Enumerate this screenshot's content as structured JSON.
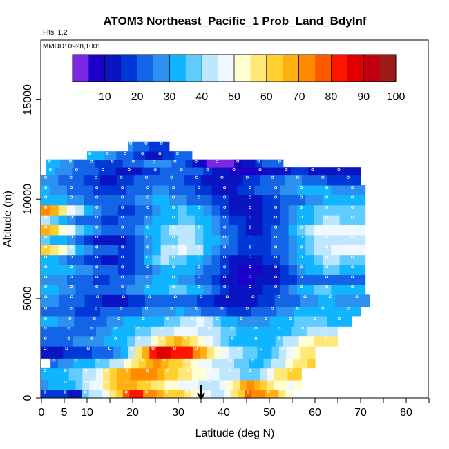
{
  "chart_data": {
    "type": "heatmap",
    "title": "ATOM3 Northeast_Pacific_1 Prob_Land_BdyInf",
    "annotations": {
      "flights": "Flts: 1,2",
      "dates": "MMDD: 0928,1001"
    },
    "xlabel": "Latitude (deg N)",
    "ylabel": "Altitude (m)",
    "xlim": [
      0,
      85
    ],
    "ylim": [
      0,
      18000
    ],
    "x_tick_labels": [
      "0",
      "5",
      "10",
      "20",
      "30",
      "40",
      "50",
      "60",
      "70",
      "80"
    ],
    "y_tick_labels": [
      "0",
      "5000",
      "10000",
      "15000"
    ],
    "colorbar": {
      "min": 0,
      "max": 100,
      "tick_labels": [
        "10",
        "20",
        "30",
        "40",
        "50",
        "60",
        "70",
        "80",
        "90",
        "100"
      ],
      "colors": [
        "#7b28e6",
        "#1b00c8",
        "#0a14c0",
        "#0038d8",
        "#1464e8",
        "#2b90f0",
        "#10b4ff",
        "#60ccff",
        "#bee6ff",
        "#f0f8ff",
        "#ffffd0",
        "#ffe878",
        "#ffd030",
        "#ffb010",
        "#ff8c00",
        "#ff5a00",
        "#ff1400",
        "#e00000",
        "#c00010",
        "#9c1a1a"
      ]
    },
    "marker_latitude": 35,
    "grid": false,
    "rows": [
      {
        "alt_min": 0,
        "alt_max": 400,
        "lat_min": 0,
        "lat_max": 55,
        "values": [
          18,
          18,
          18,
          18,
          12,
          12,
          38,
          40,
          42,
          45,
          55,
          62,
          78,
          80,
          82,
          72,
          70,
          66,
          64,
          64,
          60,
          55,
          50,
          48,
          46,
          44,
          42,
          45,
          55,
          60,
          75,
          72,
          70,
          68,
          65,
          58,
          52
        ]
      },
      {
        "alt_min": 400,
        "alt_max": 900,
        "lat_min": 0,
        "lat_max": 57,
        "values": [
          28,
          30,
          32,
          34,
          34,
          38,
          42,
          45,
          48,
          55,
          62,
          68,
          66,
          65,
          62,
          60,
          58,
          55,
          52,
          50,
          48,
          48,
          46,
          44,
          42,
          40,
          45,
          50,
          58,
          66,
          70,
          65,
          60,
          55,
          52,
          50,
          48,
          52
        ]
      },
      {
        "alt_min": 900,
        "alt_max": 1500,
        "lat_min": 0,
        "lat_max": 57,
        "values": [
          30,
          30,
          32,
          34,
          36,
          38,
          40,
          44,
          48,
          55,
          62,
          66,
          68,
          72,
          74,
          72,
          70,
          68,
          64,
          62,
          58,
          55,
          52,
          50,
          48,
          46,
          44,
          42,
          40,
          38,
          36,
          38,
          42,
          48,
          55,
          58,
          60,
          62
        ]
      },
      {
        "alt_min": 1500,
        "alt_max": 2000,
        "lat_min": 2,
        "lat_max": 60,
        "values": [
          24,
          26,
          28,
          30,
          32,
          34,
          36,
          38,
          40,
          44,
          50,
          56,
          62,
          68,
          70,
          68,
          64,
          60,
          56,
          52,
          48,
          46,
          44,
          42,
          40,
          38,
          36,
          34,
          34,
          36,
          40,
          44,
          50,
          55,
          58,
          60
        ]
      },
      {
        "alt_min": 2000,
        "alt_max": 2600,
        "lat_min": 0,
        "lat_max": 60,
        "values": [
          14,
          14,
          14,
          16,
          16,
          18,
          18,
          20,
          22,
          24,
          28,
          34,
          44,
          56,
          68,
          84,
          88,
          86,
          84,
          82,
          80,
          74,
          66,
          58,
          50,
          46,
          42,
          40,
          38,
          36,
          34,
          34,
          36,
          40,
          46,
          52,
          56,
          58
        ]
      },
      {
        "alt_min": 2600,
        "alt_max": 3100,
        "lat_min": 0,
        "lat_max": 65,
        "values": [
          22,
          22,
          24,
          24,
          26,
          26,
          28,
          28,
          30,
          30,
          34,
          36,
          40,
          44,
          52,
          58,
          64,
          66,
          64,
          58,
          52,
          46,
          42,
          38,
          34,
          32,
          30,
          30,
          32,
          34,
          36,
          40,
          44,
          50,
          54,
          56,
          58,
          58
        ]
      },
      {
        "alt_min": 3100,
        "alt_max": 3600,
        "lat_min": 0,
        "lat_max": 65,
        "values": [
          20,
          20,
          22,
          22,
          24,
          24,
          24,
          26,
          28,
          30,
          32,
          34,
          36,
          38,
          40,
          42,
          44,
          46,
          48,
          46,
          44,
          42,
          40,
          38,
          36,
          34,
          32,
          30,
          30,
          30,
          32,
          34,
          36,
          38,
          40,
          42,
          44,
          44
        ]
      },
      {
        "alt_min": 3600,
        "alt_max": 4100,
        "lat_min": 0,
        "lat_max": 68,
        "values": [
          30,
          30,
          28,
          26,
          24,
          22,
          22,
          24,
          26,
          28,
          30,
          32,
          34,
          34,
          34,
          36,
          38,
          40,
          44,
          46,
          42,
          38,
          34,
          30,
          28,
          26,
          26,
          28,
          30,
          32,
          34,
          36,
          38,
          38,
          36,
          34,
          34,
          34
        ]
      },
      {
        "alt_min": 4100,
        "alt_max": 4600,
        "lat_min": 0,
        "lat_max": 70,
        "values": [
          24,
          24,
          22,
          20,
          18,
          18,
          18,
          20,
          22,
          22,
          24,
          24,
          26,
          26,
          28,
          28,
          30,
          28,
          26,
          24,
          22,
          20,
          18,
          18,
          18,
          20,
          22,
          24,
          26,
          28,
          30,
          32,
          34,
          34,
          32,
          30,
          30,
          30
        ]
      },
      {
        "alt_min": 4600,
        "alt_max": 5200,
        "lat_min": 0,
        "lat_max": 72,
        "values": [
          26,
          26,
          24,
          22,
          20,
          18,
          16,
          14,
          14,
          14,
          16,
          18,
          20,
          22,
          24,
          24,
          22,
          20,
          18,
          16,
          14,
          12,
          12,
          12,
          14,
          16,
          18,
          20,
          22,
          24,
          26,
          28,
          30,
          30,
          28,
          26,
          26,
          26
        ]
      },
      {
        "alt_min": 5200,
        "alt_max": 5700,
        "lat_min": 0,
        "lat_max": 71,
        "values": [
          30,
          30,
          28,
          26,
          24,
          22,
          20,
          20,
          22,
          24,
          26,
          28,
          30,
          32,
          34,
          36,
          36,
          34,
          30,
          26,
          22,
          18,
          14,
          12,
          12,
          14,
          16,
          18,
          22,
          26,
          30,
          34,
          36,
          36,
          34,
          32,
          32,
          32
        ]
      },
      {
        "alt_min": 5700,
        "alt_max": 6200,
        "lat_min": 0,
        "lat_max": 71,
        "values": [
          28,
          28,
          26,
          24,
          22,
          20,
          18,
          18,
          20,
          22,
          24,
          26,
          28,
          30,
          32,
          30,
          28,
          26,
          24,
          22,
          18,
          14,
          10,
          8,
          8,
          10,
          12,
          14,
          16,
          18,
          20,
          22,
          24,
          24,
          22,
          20,
          20,
          20
        ]
      },
      {
        "alt_min": 6200,
        "alt_max": 6700,
        "lat_min": 0,
        "lat_max": 71,
        "values": [
          34,
          34,
          32,
          30,
          28,
          26,
          24,
          22,
          20,
          18,
          18,
          20,
          22,
          26,
          30,
          32,
          34,
          32,
          28,
          24,
          20,
          16,
          12,
          8,
          6,
          8,
          10,
          14,
          18,
          22,
          26,
          30,
          34,
          36,
          36,
          34,
          34,
          34
        ]
      },
      {
        "alt_min": 6700,
        "alt_max": 7200,
        "lat_min": 0,
        "lat_max": 71,
        "values": [
          32,
          30,
          28,
          24,
          20,
          18,
          16,
          14,
          14,
          16,
          18,
          24,
          32,
          38,
          40,
          38,
          36,
          34,
          30,
          26,
          22,
          18,
          14,
          12,
          12,
          14,
          16,
          18,
          22,
          26,
          30,
          34,
          38,
          40,
          40,
          38,
          38,
          38
        ]
      },
      {
        "alt_min": 7200,
        "alt_max": 7700,
        "lat_min": 0,
        "lat_max": 71,
        "values": [
          62,
          58,
          50,
          42,
          34,
          28,
          24,
          22,
          20,
          18,
          18,
          22,
          28,
          34,
          40,
          44,
          46,
          44,
          40,
          34,
          28,
          24,
          20,
          18,
          16,
          16,
          18,
          20,
          24,
          28,
          32,
          36,
          40,
          44,
          46,
          46,
          46,
          46
        ]
      },
      {
        "alt_min": 7700,
        "alt_max": 8200,
        "lat_min": 0,
        "lat_max": 71,
        "values": [
          36,
          34,
          30,
          26,
          22,
          18,
          14,
          12,
          12,
          14,
          18,
          22,
          28,
          32,
          36,
          38,
          40,
          40,
          38,
          34,
          30,
          26,
          22,
          18,
          16,
          16,
          18,
          20,
          24,
          28,
          32,
          36,
          40,
          42,
          44,
          44,
          44,
          44
        ]
      },
      {
        "alt_min": 8200,
        "alt_max": 8700,
        "lat_min": 0,
        "lat_max": 71,
        "values": [
          68,
          62,
          54,
          46,
          38,
          32,
          26,
          22,
          20,
          20,
          22,
          26,
          30,
          34,
          38,
          40,
          42,
          40,
          36,
          32,
          28,
          24,
          20,
          16,
          14,
          14,
          16,
          20,
          24,
          30,
          36,
          42,
          46,
          48,
          48,
          46,
          46,
          46
        ]
      },
      {
        "alt_min": 8700,
        "alt_max": 9200,
        "lat_min": 0,
        "lat_max": 71,
        "values": [
          40,
          36,
          32,
          28,
          24,
          22,
          20,
          18,
          18,
          20,
          22,
          24,
          28,
          30,
          32,
          34,
          36,
          36,
          34,
          30,
          26,
          22,
          18,
          16,
          14,
          14,
          16,
          18,
          22,
          26,
          30,
          34,
          38,
          40,
          40,
          38,
          38,
          38
        ]
      },
      {
        "alt_min": 9200,
        "alt_max": 9700,
        "lat_min": 0,
        "lat_max": 71,
        "values": [
          72,
          66,
          58,
          48,
          40,
          32,
          26,
          22,
          20,
          18,
          18,
          20,
          24,
          28,
          32,
          34,
          36,
          34,
          30,
          26,
          22,
          18,
          14,
          12,
          12,
          14,
          16,
          18,
          22,
          26,
          30,
          34,
          36,
          38,
          38,
          36,
          36,
          36
        ]
      },
      {
        "alt_min": 9700,
        "alt_max": 10200,
        "lat_min": 0,
        "lat_max": 71,
        "values": [
          34,
          32,
          30,
          28,
          26,
          24,
          22,
          20,
          20,
          22,
          24,
          26,
          28,
          30,
          30,
          28,
          26,
          24,
          22,
          20,
          18,
          16,
          14,
          12,
          12,
          14,
          16,
          18,
          20,
          22,
          24,
          26,
          28,
          30,
          30,
          30,
          30,
          30
        ]
      },
      {
        "alt_min": 10200,
        "alt_max": 10700,
        "lat_min": 0,
        "lat_max": 71,
        "values": [
          30,
          28,
          26,
          24,
          22,
          20,
          18,
          16,
          16,
          18,
          20,
          22,
          24,
          26,
          26,
          24,
          22,
          20,
          18,
          16,
          14,
          14,
          14,
          16,
          18,
          20,
          22,
          24,
          26,
          28,
          30,
          30,
          30,
          30,
          28,
          28,
          28,
          28
        ]
      },
      {
        "alt_min": 10700,
        "alt_max": 11200,
        "lat_min": 0,
        "lat_max": 70,
        "values": [
          28,
          26,
          24,
          22,
          20,
          18,
          16,
          14,
          14,
          16,
          18,
          20,
          22,
          24,
          24,
          22,
          20,
          18,
          16,
          14,
          12,
          12,
          12,
          14,
          16,
          18,
          20,
          22,
          24,
          26,
          26,
          24,
          22,
          20,
          18,
          18,
          18,
          18
        ]
      },
      {
        "alt_min": 11200,
        "alt_max": 11600,
        "lat_min": 1,
        "lat_max": 70,
        "values": [
          30,
          28,
          26,
          24,
          22,
          20,
          18,
          16,
          14,
          14,
          14,
          16,
          18,
          20,
          22,
          24,
          22,
          20,
          16,
          12,
          10,
          8,
          6,
          6,
          8,
          10,
          12,
          14,
          16,
          16,
          14,
          12,
          10,
          10,
          10,
          10
        ]
      },
      {
        "alt_min": 11600,
        "alt_max": 12000,
        "lat_min": 1,
        "lat_max": 53,
        "values": [
          32,
          30,
          28,
          26,
          24,
          22,
          20,
          18,
          16,
          16,
          18,
          20,
          22,
          24,
          26,
          28,
          28,
          26,
          24,
          20,
          16,
          12,
          8,
          4,
          2,
          2,
          4,
          6,
          10,
          14,
          18,
          20,
          22,
          24
        ]
      },
      {
        "alt_min": 12000,
        "alt_max": 12400,
        "lat_min": 10,
        "lat_max": 33,
        "values": [
          34,
          32,
          30,
          28,
          26,
          24,
          22,
          20,
          18,
          16,
          14,
          14,
          14,
          16,
          18,
          20,
          20,
          20
        ]
      },
      {
        "alt_min": 12400,
        "alt_max": 12900,
        "lat_min": 19,
        "lat_max": 28,
        "values": [
          26,
          24,
          22,
          20,
          18,
          16,
          16,
          18
        ]
      }
    ]
  }
}
